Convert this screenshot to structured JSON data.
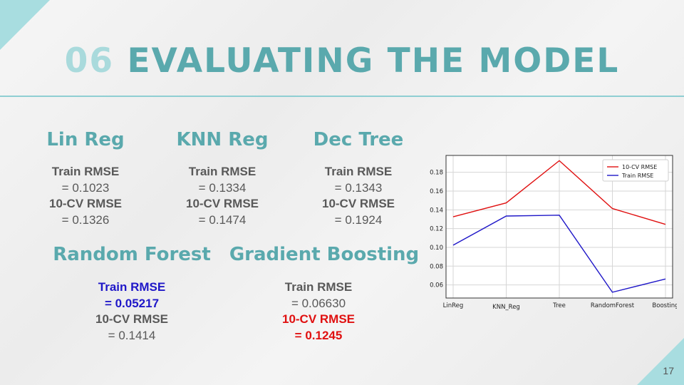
{
  "slide": {
    "title_number": "06",
    "title_text": "EVALUATING THE MODEL",
    "page_number": "17"
  },
  "models": [
    {
      "name": "Lin Reg",
      "train_label": "Train RMSE",
      "train_value": "= 0.1023",
      "cv_label": "10-CV RMSE",
      "cv_value": "= 0.1326"
    },
    {
      "name": "KNN Reg",
      "train_label": "Train RMSE",
      "train_value": "= 0.1334",
      "cv_label": "10-CV RMSE",
      "cv_value": "= 0.1474"
    },
    {
      "name": "Dec Tree",
      "train_label": "Train RMSE",
      "train_value": "= 0.1343",
      "cv_label": "10-CV RMSE",
      "cv_value": "= 0.1924"
    },
    {
      "name": "Random Forest",
      "train_label": "Train RMSE",
      "train_value": "= 0.05217",
      "cv_label": "10-CV RMSE",
      "cv_value": "= 0.1414"
    },
    {
      "name": "Gradient Boosting",
      "train_label": "Train RMSE",
      "train_value": "= 0.06630",
      "cv_label": "10-CV RMSE",
      "cv_value": "= 0.1245"
    }
  ],
  "colors": {
    "accent": "#5aa9ad",
    "accent_light": "#a9dadc",
    "best_train": "#1f17c8",
    "best_cv": "#e01010"
  },
  "chart_data": {
    "type": "line",
    "categories": [
      "LinReg",
      "KNN_Reg",
      "Tree",
      "RandomForest",
      "Boosting"
    ],
    "series": [
      {
        "name": "10-CV RMSE",
        "color": "#e01010",
        "values": [
          0.1326,
          0.1474,
          0.1924,
          0.1414,
          0.1245
        ]
      },
      {
        "name": "Train RMSE",
        "color": "#1f17c8",
        "values": [
          0.1023,
          0.1334,
          0.1343,
          0.05217,
          0.0663
        ]
      }
    ],
    "yticks": [
      "0.06",
      "0.08",
      "0.10",
      "0.12",
      "0.14",
      "0.16",
      "0.18"
    ],
    "ylim": [
      0.046,
      0.198
    ],
    "grid": true,
    "legend": "top-right"
  }
}
